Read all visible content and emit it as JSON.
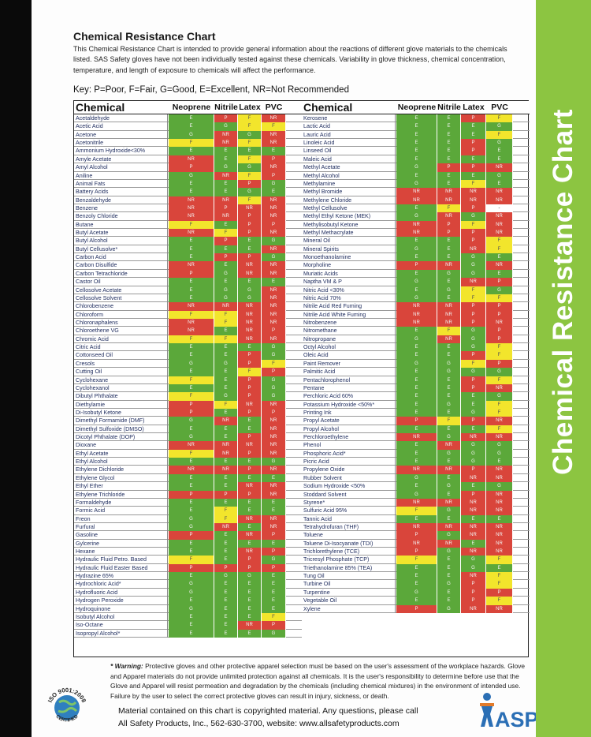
{
  "sidebar_title": "Chemical Resistance Chart",
  "title": "Chemical Resistance Chart",
  "intro": "This Chemical Resistance Chart is intended to provide general information about the reactions of different glove materials to the chemicals listed.  SAS Safety gloves have not been individually tested against these chemicals.  Variability in glove thickness, chemical concentration, temperature, and length of exposure to chemicals will affect the performance.",
  "key": "Key: P=Poor, F=Fair, G=Good, E=Excellent, NR=Not Recommended",
  "headers": {
    "chemical": "Chemical",
    "neoprene": "Neoprene",
    "nitrile": "Nitrile",
    "latex": "Latex",
    "pvc": "PVC"
  },
  "left_rows": [
    [
      "Acetaldehyde",
      "E",
      "P",
      "F",
      "NR"
    ],
    [
      "Acetic Acid",
      "E",
      "G",
      "F",
      "F"
    ],
    [
      "Acetone",
      "G",
      "NR",
      "G",
      "NR"
    ],
    [
      "Acetonitrile",
      "F",
      "NR",
      "F",
      "NR"
    ],
    [
      "Ammonium Hydroxide<30%",
      "E",
      "E",
      "E",
      "E"
    ],
    [
      "Amyle Acetate",
      "NR",
      "E",
      "F",
      "P"
    ],
    [
      "Amyl Alcohol",
      "P",
      "G",
      "G",
      "NR"
    ],
    [
      "Aniline",
      "G",
      "NR",
      "F",
      "P"
    ],
    [
      "Animal Fats",
      "E",
      "E",
      "P",
      "G"
    ],
    [
      "Battery Acids",
      "E",
      "E",
      "G",
      "E"
    ],
    [
      "Benzaldehyde",
      "NR",
      "NR",
      "F",
      "NR"
    ],
    [
      "Benzene",
      "NR",
      "P",
      "NR",
      "NR"
    ],
    [
      "Benzoly Chloride",
      "NR",
      "NR",
      "P",
      "NR"
    ],
    [
      "Butane",
      "F",
      "E",
      "P",
      "P"
    ],
    [
      "Butyl Acetate",
      "NR",
      "F",
      "P",
      "NR"
    ],
    [
      "Butyl Alcohol",
      "E",
      "P",
      "E",
      "G"
    ],
    [
      "Butyl Cellusolve*",
      "E",
      "E",
      "E",
      "NR"
    ],
    [
      "Carbon Acid",
      "E",
      "P",
      "P",
      "G"
    ],
    [
      "Carbon Disulfide",
      "NR",
      "E",
      "NR",
      "NR"
    ],
    [
      "Carbon Tetrachloride",
      "P",
      "G",
      "NR",
      "NR"
    ],
    [
      "Castor Oil",
      "E",
      "E",
      "E",
      "E"
    ],
    [
      "Cellosolve Acetate",
      "E",
      "G",
      "G",
      "NR"
    ],
    [
      "Cellosolve Solvent",
      "E",
      "G",
      "G",
      "NR"
    ],
    [
      "Chlorobenzene",
      "NR",
      "NR",
      "NR",
      "NR"
    ],
    [
      "Chloroform",
      "F",
      "F",
      "NR",
      "NR"
    ],
    [
      "Chloronaphalens",
      "NR",
      "F",
      "NR",
      "NR"
    ],
    [
      "Chloroethene VG",
      "NR",
      "E",
      "NR",
      "P"
    ],
    [
      "Chromic Acid",
      "F",
      "F",
      "NR",
      "NR"
    ],
    [
      "Citric Acid",
      "E",
      "E",
      "E",
      "G"
    ],
    [
      "Cottonseed Oil",
      "E",
      "E",
      "P",
      "G"
    ],
    [
      "Cresols",
      "G",
      "G",
      "P",
      "F"
    ],
    [
      "Cutting Oil",
      "E",
      "E",
      "F",
      "P"
    ],
    [
      "Cyclohexane",
      "F",
      "E",
      "P",
      "G"
    ],
    [
      "Cyclohexanol",
      "E",
      "E",
      "P",
      "G"
    ],
    [
      "Dibutyl Phthalate",
      "F",
      "G",
      "P",
      "G"
    ],
    [
      "Diethylamie",
      "P",
      "F",
      "NR",
      "NR"
    ],
    [
      "Di-Isobutyl Ketone",
      "P",
      "E",
      "P",
      "P"
    ],
    [
      "Dimethyl Formamide (DMF)",
      "G",
      "NR",
      "E",
      "NR"
    ],
    [
      "Dimethyl Sulfoxide (DMSO)",
      "E",
      "E",
      "E",
      "NR"
    ],
    [
      "Dicotyl Phthalate (DOP)",
      "G",
      "E",
      "P",
      "NR"
    ],
    [
      "Dioxane",
      "NR",
      "NR",
      "NR",
      "NR"
    ],
    [
      "Ethyl Acetate",
      "F",
      "NR",
      "P",
      "NR"
    ],
    [
      "Ethyl Alcohol",
      "E",
      "E",
      "E",
      "G"
    ],
    [
      "Ethylene Dichloride",
      "NR",
      "NR",
      "P",
      "NR"
    ],
    [
      "Ethylene Glycol",
      "E",
      "E",
      "E",
      "E"
    ],
    [
      "Ethyl Ether",
      "E",
      "E",
      "NR",
      "NR"
    ],
    [
      "Ethylene Trichloride",
      "P",
      "P",
      "P",
      "NR"
    ],
    [
      "Formaldehyde",
      "E",
      "E",
      "E",
      "E"
    ],
    [
      "Formic Acid",
      "E",
      "F",
      "E",
      "E"
    ],
    [
      "Freon",
      "G",
      "F",
      "NR",
      "NR"
    ],
    [
      "Furfural",
      "G",
      "NR",
      "E",
      "NR"
    ],
    [
      "Gasoline",
      "P",
      "E",
      "NR",
      "P"
    ],
    [
      "Gylcerine",
      "E",
      "E",
      "E",
      "E"
    ],
    [
      "Hexane",
      "E",
      "E",
      "NR",
      "P"
    ],
    [
      "Hydraulic Fluid Petro. Based",
      "F",
      "E",
      "P",
      "G"
    ],
    [
      "Hydraulic Fluid Easter Based",
      "P",
      "P",
      "P",
      "P"
    ],
    [
      "Hydrazine 65%",
      "E",
      "G",
      "G",
      "E"
    ],
    [
      "Hydrochloric Acid*",
      "G",
      "E",
      "E",
      "E"
    ],
    [
      "Hydrofluoric Acid",
      "G",
      "E",
      "E",
      "E"
    ],
    [
      "Hydrogen Peroxide",
      "E",
      "E",
      "E",
      "E"
    ],
    [
      "Hydroquinone",
      "G",
      "E",
      "E",
      "E"
    ],
    [
      "Isobutyl Alcohol",
      "E",
      "E",
      "E",
      "F"
    ],
    [
      "Iso-Octane",
      "E",
      "E",
      "NR",
      "P"
    ],
    [
      "Isopropyl Alcohol*",
      "E",
      "E",
      "E",
      "G"
    ]
  ],
  "right_rows": [
    [
      "Kerosene",
      "E",
      "E",
      "P",
      "F"
    ],
    [
      "Lactic Acid",
      "E",
      "E",
      "E",
      "G"
    ],
    [
      "Lauric Acid",
      "E",
      "E",
      "E",
      "F"
    ],
    [
      "Linoleic Acid",
      "E",
      "E",
      "P",
      "G"
    ],
    [
      "Linseed Oil",
      "E",
      "E",
      "P",
      "E"
    ],
    [
      "Maleic Acid",
      "E",
      "E",
      "E",
      "E"
    ],
    [
      "Methyl Acetate",
      "G",
      "P",
      "P",
      "NR"
    ],
    [
      "Methyl Alcohol",
      "E",
      "E",
      "E",
      "G"
    ],
    [
      "Methylamine",
      "G",
      "E",
      "F",
      "E"
    ],
    [
      "Methyl Bromide",
      "NR",
      "NR",
      "NR",
      "NR"
    ],
    [
      "Methylene Chloride",
      "NR",
      "NR",
      "NR",
      "NR"
    ],
    [
      "Methyl Cellusolve",
      "E",
      "F",
      "P",
      "-"
    ],
    [
      "Methyl Ethyl Ketone (MEK)",
      "G",
      "NR",
      "G",
      "NR"
    ],
    [
      "Methylisobutyl Ketone",
      "NR",
      "P",
      "F",
      "NR"
    ],
    [
      "Methyl Methacrylate",
      "NR",
      "P",
      "P",
      "NR"
    ],
    [
      "Mineral Oil",
      "E",
      "E",
      "P",
      "F"
    ],
    [
      "Mineral Spirits",
      "G",
      "E",
      "NR",
      "F"
    ],
    [
      "Monoethanolamine",
      "E",
      "E",
      "G",
      "E"
    ],
    [
      "Morpholine",
      "P",
      "NR",
      "G",
      "NR"
    ],
    [
      "Muriatic Acids",
      "E",
      "G",
      "G",
      "E"
    ],
    [
      "Naptha VM & P",
      "G",
      "E",
      "NR",
      "P"
    ],
    [
      "Nitric Acid <30%",
      "E",
      "G",
      "F",
      "G"
    ],
    [
      "Nitric Acid 70%",
      "G",
      "E",
      "F",
      "F"
    ],
    [
      "Nitrile Acid Red Fuming",
      "NR",
      "NR",
      "P",
      "P"
    ],
    [
      "Nitrile Acid White Fuming",
      "NR",
      "NR",
      "P",
      "P"
    ],
    [
      "Nitrobenzene",
      "NR",
      "NR",
      "P",
      "NR"
    ],
    [
      "Nitromethane",
      "E",
      "F",
      "G",
      "P"
    ],
    [
      "Nitropropane",
      "G",
      "NR",
      "G",
      "P"
    ],
    [
      "Octyl Alcohol",
      "E",
      "E",
      "G",
      "F"
    ],
    [
      "Oleic Acid",
      "E",
      "E",
      "P",
      "F"
    ],
    [
      "Paint Remover",
      "G",
      "G",
      "F",
      "P"
    ],
    [
      "Palmitic Acid",
      "E",
      "G",
      "G",
      "G"
    ],
    [
      "Pentachlorophenol",
      "E",
      "E",
      "P",
      "F"
    ],
    [
      "Pentane",
      "E",
      "E",
      "P",
      "NR"
    ],
    [
      "Perchloric Acid 60%",
      "E",
      "E",
      "E",
      "G"
    ],
    [
      "Potassium Hydroxide <50%*",
      "E",
      "G",
      "E",
      "F"
    ],
    [
      "Printing Ink",
      "E",
      "E",
      "G",
      "F"
    ],
    [
      "Propyl Acetate",
      "P",
      "F",
      "P",
      "NR"
    ],
    [
      "Propyl Alcohol",
      "E",
      "E",
      "E",
      "F"
    ],
    [
      "Perchloroethylene",
      "NR",
      "G",
      "NR",
      "NR"
    ],
    [
      "Phenol",
      "E",
      "NR",
      "G",
      "G"
    ],
    [
      "Phosphoric Acid*",
      "E",
      "G",
      "G",
      "G"
    ],
    [
      "Picric Acid",
      "E",
      "E",
      "G",
      "E"
    ],
    [
      "Propylene Oxide",
      "NR",
      "NR",
      "P",
      "NR"
    ],
    [
      "Rubber Solvent",
      "G",
      "E",
      "NR",
      "NR"
    ],
    [
      "Sodium Hydroxide <50%",
      "E",
      "G",
      "E",
      "G"
    ],
    [
      "Stoddard Solvent",
      "G",
      "E",
      "P",
      "NR"
    ],
    [
      "Styrene*",
      "NR",
      "NR",
      "NR",
      "NR"
    ],
    [
      "Sulfuric Acid 95%",
      "F",
      "G",
      "NR",
      "NR"
    ],
    [
      "Tannic Acid",
      "E",
      "E",
      "E",
      "E"
    ],
    [
      "Tetrahydrofuran (THF)",
      "NR",
      "NR",
      "NR",
      "NR"
    ],
    [
      "Toluene",
      "P",
      "G",
      "NR",
      "NR"
    ],
    [
      "Toluene Di-Isocyanate (TDI)",
      "NR",
      "NR",
      "E",
      "NR"
    ],
    [
      "Trichlorethylene (TCE)",
      "P",
      "G",
      "NR",
      "NR"
    ],
    [
      "Tricresyl Phosphate (TCP)",
      "F",
      "E",
      "G",
      "F"
    ],
    [
      "Triethanolamine 85% (TEA)",
      "E",
      "E",
      "G",
      "E"
    ],
    [
      "Tung Oil",
      "E",
      "E",
      "NR",
      "F"
    ],
    [
      "Turbine Oil",
      "E",
      "G",
      "P",
      "F"
    ],
    [
      "Turpentine",
      "G",
      "E",
      "P",
      "P"
    ],
    [
      "Vegetable Oil",
      "E",
      "E",
      "P",
      "F"
    ],
    [
      "Xylene",
      "P",
      "G",
      "NR",
      "NR"
    ]
  ],
  "warning_label": "* Warning:",
  "warning": "Protective gloves and other protective apparel selection must be based on the user's assessment of the workplace hazards. Glove and Apparel materials do not provide unlimited protection against all chemicals.  It is the user's responsibility to determine before use that the Glove and Apparel will resist permeation and degradation by the chemicals (including chemical mixtures) in the environment of intended use.  Failure by the user to select the correct protective gloves can result in injury, sickness, or death.",
  "footer_line1": "Material contained on this chart is copyrighted material.  Any questions, please call",
  "footer_line2": "All Safety Products, Inc., 562-630-3700, website:  www.allsafetyproducts.com",
  "iso_top": "ISO 9001:2008",
  "iso_bottom": "CERTIFIED",
  "asp_logo": "ASP",
  "colors": {
    "excellent_good": "#5ba83a",
    "fair": "#f2e52c",
    "poor_nr": "#d9453b",
    "sidebar": "#8cc541"
  }
}
